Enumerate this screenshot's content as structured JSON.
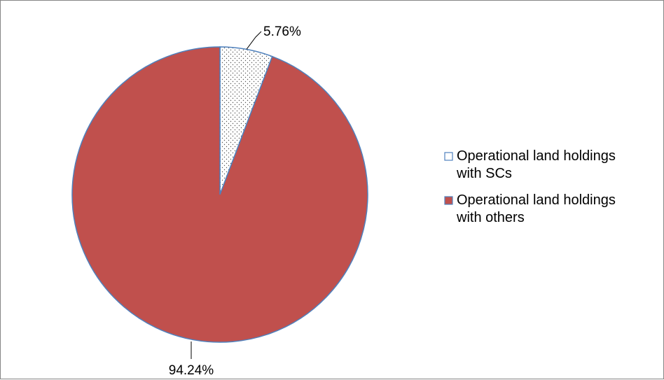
{
  "chart_data": {
    "type": "pie",
    "title": "",
    "start_angle_deg": 0,
    "direction": "clockwise",
    "legend_position": "right",
    "slices": [
      {
        "label_lines": [
          "Operational land holdings",
          "with SCs"
        ],
        "value": 5.76,
        "value_label": "5.76%",
        "fill": "#ffffff",
        "pattern": "dotted",
        "stroke": "#4f81bd"
      },
      {
        "label_lines": [
          "Operational land holdings",
          "with others"
        ],
        "value": 94.24,
        "value_label": "94.24%",
        "fill": "#c0504d",
        "pattern": "solid",
        "stroke": "#4f81bd"
      }
    ],
    "border_color": "#868686"
  }
}
